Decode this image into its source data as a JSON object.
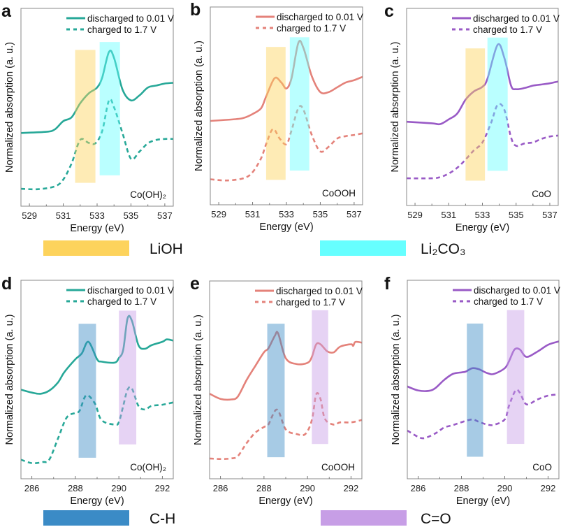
{
  "legend_keys": [
    {
      "label": "LiOH",
      "color": "#fdd35c"
    },
    {
      "label": "Li₂CO₃",
      "color": "#66ffff"
    },
    {
      "label": "C-H",
      "color": "#3b8bc6"
    },
    {
      "label": "C=O",
      "color": "#c79ee6"
    }
  ],
  "chart_data": [
    {
      "type": "line",
      "panel_label": "a",
      "sample": "Co(OH)₂",
      "xlabel": "Energy (eV)",
      "ylabel": "Normalized absorption (a. u.)",
      "xlim": [
        528.5,
        537.5
      ],
      "ylim": [
        0,
        100
      ],
      "xticks": [
        529,
        531,
        533,
        535,
        537
      ],
      "color": "#27a898",
      "series": [
        {
          "name": "discharged to 0.01 V",
          "style": "solid",
          "x": [
            528.5,
            530,
            530.5,
            531,
            531.5,
            532,
            532.5,
            533,
            533.3,
            533.7,
            534,
            534.5,
            535,
            535.5,
            536,
            536.5,
            537,
            537.5
          ],
          "y": [
            37,
            37.6,
            38.8,
            43,
            45,
            52,
            57,
            60,
            65,
            78,
            75,
            59,
            53.5,
            56,
            60,
            61,
            62,
            62.4
          ]
        },
        {
          "name": "charged to 1.7 V",
          "style": "dashed",
          "x": [
            528.5,
            529.5,
            530.5,
            531,
            531.5,
            532,
            532.5,
            532.9,
            533.3,
            533.7,
            534,
            534.5,
            535,
            535.5,
            536,
            536.5,
            537,
            537.5
          ],
          "y": [
            8.8,
            8.6,
            10,
            13.5,
            21.8,
            33.5,
            32,
            31.8,
            38,
            53.5,
            50,
            37,
            24,
            27.6,
            31.8,
            33.5,
            34,
            34
          ]
        }
      ],
      "bands": [
        {
          "label": "LiOH",
          "x": [
            531.7,
            532.9
          ],
          "y": [
            11.8,
            79
          ],
          "color": "#fdd35c"
        },
        {
          "label": "Li₂CO₃",
          "x": [
            533.15,
            534.35
          ],
          "y": [
            15.6,
            83
          ],
          "color": "#66ffff"
        }
      ]
    },
    {
      "type": "line",
      "panel_label": "b",
      "sample": "CoOOH",
      "xlabel": "Energy (eV)",
      "ylabel": "Normalized absorption (a. u.)",
      "xlim": [
        528.5,
        537.5
      ],
      "ylim": [
        0,
        100
      ],
      "xticks": [
        529,
        531,
        533,
        535,
        537
      ],
      "color": "#e4827a",
      "series": [
        {
          "name": "discharged to 0.01 V",
          "style": "solid",
          "x": [
            528.5,
            530,
            530.5,
            531,
            531.5,
            531.8,
            532.3,
            532.7,
            533,
            533.3,
            533.7,
            534,
            534.5,
            535,
            535.5,
            536,
            536.5,
            537,
            537.5
          ],
          "y": [
            42.4,
            43.3,
            44,
            45.9,
            48.8,
            54.7,
            64,
            61.8,
            58.8,
            64,
            81.8,
            79.4,
            65,
            57,
            57,
            59.4,
            61.8,
            63,
            64.7
          ]
        },
        {
          "name": "charged to 1.7 V",
          "style": "dashed",
          "x": [
            528.5,
            529.5,
            530.5,
            531,
            531.5,
            531.8,
            532.2,
            532.6,
            533,
            533.3,
            533.7,
            534,
            534.5,
            535,
            535.5,
            536,
            536.5,
            537,
            537.5
          ],
          "y": [
            12.9,
            12.3,
            13.5,
            16.5,
            23.5,
            30.6,
            38.3,
            33.5,
            30.6,
            37.6,
            48.8,
            48.2,
            35.3,
            27,
            29.4,
            33.5,
            34.7,
            35.3,
            36.1
          ]
        }
      ],
      "bands": [
        {
          "label": "LiOH",
          "x": [
            531.8,
            532.95
          ],
          "y": [
            12.6,
            79.8
          ],
          "color": "#fdd35c"
        },
        {
          "label": "Li₂CO₃",
          "x": [
            533.2,
            534.35
          ],
          "y": [
            17.3,
            84.7
          ],
          "color": "#66ffff"
        }
      ]
    },
    {
      "type": "line",
      "panel_label": "c",
      "sample": "CoO",
      "xlabel": "Energy (eV)",
      "ylabel": "Normalized absorption (a. u.)",
      "xlim": [
        528.5,
        537.5
      ],
      "ylim": [
        0,
        100
      ],
      "xticks": [
        529,
        531,
        533,
        535,
        537
      ],
      "color": "#995ac6",
      "series": [
        {
          "name": "discharged to 0.01 V",
          "style": "solid",
          "x": [
            528.5,
            530,
            530.5,
            531,
            531.5,
            532,
            532.5,
            533,
            533.3,
            533.9,
            534.3,
            534.7,
            535,
            535.5,
            536,
            536.5,
            537,
            537.5
          ],
          "y": [
            42.5,
            41.7,
            41.3,
            43.7,
            46.6,
            53.7,
            57.9,
            60.2,
            64.3,
            81.5,
            75,
            60.8,
            59,
            59.6,
            60.8,
            61.4,
            62,
            62.9
          ]
        },
        {
          "name": "charged to 1.7 V",
          "style": "dashed",
          "x": [
            528.5,
            530,
            530.5,
            531,
            531.5,
            532,
            532.5,
            533,
            533.5,
            533.9,
            534.3,
            534.7,
            535,
            535.5,
            536,
            536.5,
            537,
            537.5
          ],
          "y": [
            13.8,
            13.8,
            14.4,
            16.2,
            19.1,
            23.3,
            28,
            32,
            41.6,
            51,
            48.7,
            34.5,
            30.3,
            31.5,
            32,
            33.8,
            35,
            35.5
          ]
        }
      ],
      "bands": [
        {
          "label": "LiOH",
          "x": [
            532,
            533.15
          ],
          "y": [
            12.6,
            79.7
          ],
          "color": "#fdd35c"
        },
        {
          "label": "Li₂CO₃",
          "x": [
            533.3,
            534.5
          ],
          "y": [
            17.6,
            85.2
          ],
          "color": "#66ffff"
        }
      ]
    },
    {
      "type": "line",
      "panel_label": "d",
      "sample": "Co(OH)₂",
      "xlabel": "Energy (eV)",
      "ylabel": "Normalized absorption (a. u.)",
      "xlim": [
        285.5,
        292.5
      ],
      "ylim": [
        0,
        100
      ],
      "xticks": [
        286,
        288,
        290,
        292
      ],
      "color": "#27a898",
      "series": [
        {
          "name": "discharged to 0.01 V",
          "style": "solid",
          "x": [
            285.5,
            286,
            286.4,
            286.8,
            287.2,
            287.5,
            288,
            288.3,
            288.6,
            289,
            289.2,
            289.8,
            290,
            290.2,
            290.4,
            290.6,
            290.9,
            291.2,
            291.5,
            292,
            292.2,
            292.5
          ],
          "y": [
            44.9,
            43.4,
            42.8,
            44.4,
            48.5,
            53.8,
            60.2,
            63.2,
            69,
            60.2,
            59,
            58.5,
            60.8,
            65,
            80.8,
            79.6,
            67.3,
            65.5,
            67.3,
            69,
            70.2,
            69.6
          ]
        },
        {
          "name": "charged to 1.7 V",
          "style": "dashed",
          "x": [
            285.5,
            286,
            286.5,
            286.8,
            287.2,
            287.6,
            288,
            288.2,
            288.5,
            288.9,
            289.2,
            289.8,
            290,
            290.2,
            290.4,
            290.6,
            290.9,
            291.2,
            291.5,
            292,
            292.5
          ],
          "y": [
            9.6,
            7.9,
            8.4,
            9.6,
            20.2,
            30.8,
            33.2,
            34.4,
            42,
            37.9,
            29.6,
            27.3,
            28.5,
            36.7,
            44.9,
            45.5,
            36.7,
            34.9,
            36.7,
            37.3,
            38.5
          ]
        }
      ],
      "bands": [
        {
          "label": "C-H",
          "x": [
            288.15,
            288.95
          ],
          "y": [
            10.6,
            78.1
          ],
          "color": "#3b8bc6"
        },
        {
          "label": "C=O",
          "x": [
            290,
            290.8
          ],
          "y": [
            17.3,
            84.7
          ],
          "color": "#c79ee6"
        }
      ]
    },
    {
      "type": "line",
      "panel_label": "e",
      "sample": "CoOOH",
      "xlabel": "Energy (eV)",
      "ylabel": "Normalized absorption (a. u.)",
      "xlim": [
        285.5,
        292.5
      ],
      "ylim": [
        0,
        100
      ],
      "xticks": [
        286,
        288,
        290,
        292
      ],
      "color": "#e4827a",
      "series": [
        {
          "name": "discharged to 0.01 V",
          "style": "solid",
          "x": [
            285.5,
            286,
            286.5,
            286.8,
            287.2,
            287.6,
            288,
            288.2,
            288.5,
            288.65,
            289,
            289.5,
            290,
            290.2,
            290.4,
            290.6,
            290.9,
            291.2,
            291.5,
            292,
            292.1,
            292.2,
            292.5
          ],
          "y": [
            43,
            40.4,
            40.1,
            41.6,
            49.9,
            57,
            64,
            65.9,
            72.3,
            73.5,
            61,
            58,
            58.6,
            61.6,
            68,
            68,
            64.5,
            63.9,
            66.8,
            68,
            67.2,
            69.2,
            68.8
          ]
        },
        {
          "name": "charged to 1.7 V",
          "style": "dashed",
          "x": [
            285.5,
            286,
            286.5,
            286.8,
            287.2,
            287.6,
            288,
            288.2,
            288.6,
            289,
            289.5,
            289.9,
            290.2,
            290.4,
            290.6,
            290.8,
            291.2,
            291.5,
            292,
            292.5
          ],
          "y": [
            10.3,
            10,
            10.3,
            11.5,
            18,
            23.3,
            26.2,
            27.4,
            35,
            25,
            22.6,
            22.6,
            29.7,
            42.7,
            40.3,
            30.3,
            27.4,
            28.5,
            28.5,
            29.7
          ]
        }
      ],
      "bands": [
        {
          "label": "C-H",
          "x": [
            288.15,
            288.95
          ],
          "y": [
            10.9,
            78.4
          ],
          "color": "#3b8bc6"
        },
        {
          "label": "C=O",
          "x": [
            290.2,
            290.95
          ],
          "y": [
            17.6,
            85.2
          ],
          "color": "#c79ee6"
        }
      ]
    },
    {
      "type": "line",
      "panel_label": "f",
      "sample": "CoO",
      "xlabel": "Energy (eV)",
      "ylabel": "Normalized absorption (a. u.)",
      "xlim": [
        285.5,
        292.5
      ],
      "ylim": [
        0,
        100
      ],
      "xticks": [
        286,
        288,
        290,
        292
      ],
      "color": "#995ac6",
      "series": [
        {
          "name": "discharged to 0.01 V",
          "style": "solid",
          "x": [
            285.5,
            286,
            286.5,
            286.8,
            287.2,
            287.6,
            288,
            288.2,
            288.5,
            288.8,
            289.2,
            289.5,
            290,
            290.2,
            290.45,
            290.7,
            291,
            291.5,
            292,
            292.5
          ],
          "y": [
            46.5,
            44.5,
            44.3,
            45.7,
            49.8,
            52.8,
            53.6,
            54,
            55.7,
            55.2,
            53.2,
            52.8,
            55.7,
            59.3,
            65.1,
            65.1,
            61.4,
            64,
            67.5,
            69.2
          ]
        },
        {
          "name": "charged to 1.7 V",
          "style": "dashed",
          "x": [
            285.5,
            286,
            286.3,
            286.8,
            287.2,
            287.6,
            288,
            288.5,
            288.8,
            289.2,
            289.5,
            290,
            290.2,
            290.5,
            290.7,
            291,
            291.5,
            292,
            292.5
          ],
          "y": [
            24.3,
            21.1,
            20.5,
            22.9,
            25.8,
            27,
            28.5,
            29.9,
            28.7,
            27.3,
            27.2,
            29.9,
            36.9,
            44.5,
            43.3,
            37.5,
            39.9,
            41.9,
            42.5
          ]
        }
      ],
      "bands": [
        {
          "label": "C-H",
          "x": [
            288.25,
            289.0
          ],
          "y": [
            11.1,
            78.2
          ],
          "color": "#3b8bc6"
        },
        {
          "label": "C=O",
          "x": [
            290.1,
            290.9
          ],
          "y": [
            17.6,
            85
          ],
          "color": "#c79ee6"
        }
      ]
    }
  ]
}
